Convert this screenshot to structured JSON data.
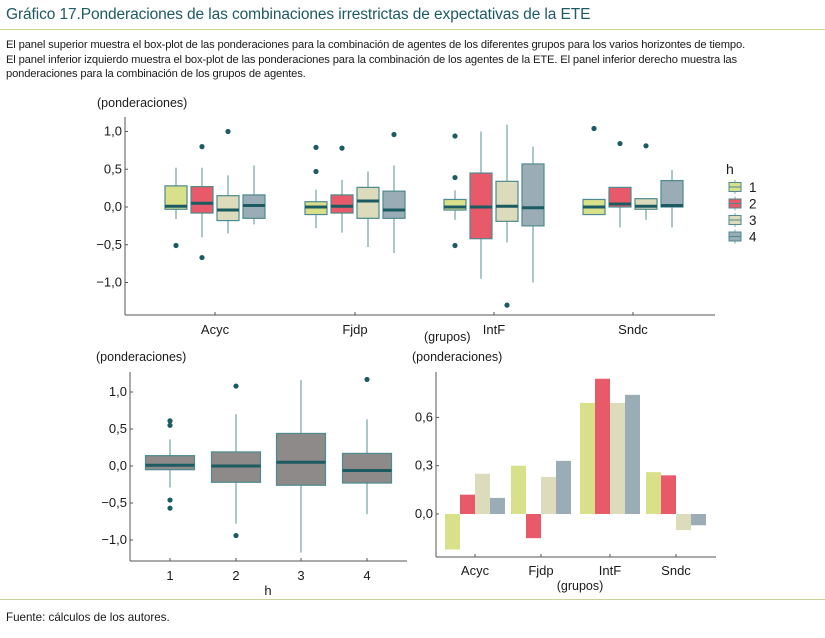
{
  "title": "Gráfico 17.Ponderaciones de las combinaciones irrestrictas de expectativas de la ETE",
  "description": [
    "El panel superior muestra el box-plot de las ponderaciones para la combinación de agentes de los diferentes grupos para los varios horizontes de tiempo.",
    "El panel inferior izquierdo muestra el box-plot de las ponderaciones para la combinación de los agentes de la ETE. El panel inferior derecho muestra las",
    "ponderaciones para la combinación de los grupos de agentes."
  ],
  "source": "Fuente: cálculos de los autores.",
  "colors": {
    "h1": "#d8e08a",
    "h2": "#e85a6a",
    "h3": "#dcdbbb",
    "h4": "#9aacb5",
    "gray_box": "#8e8a89",
    "median": "#1d5b63",
    "whisker": "#7fa9b0",
    "outlier": "#1d5b63",
    "box_edge": "#4e8a8f"
  },
  "chart_data": [
    {
      "type": "boxplot",
      "panel": "top",
      "title": "",
      "ylabel": "(ponderaciones)",
      "xlabel": "(grupos)",
      "ylim": [
        -1.43,
        1.2
      ],
      "yticks": [
        1.0,
        0.5,
        0.0,
        -0.5,
        -1.0
      ],
      "ytick_labels": [
        "1,0",
        "0,5",
        "0,0",
        "−0,5",
        "−1,0"
      ],
      "categories": [
        "Acyc",
        "Fjdp",
        "IntF",
        "Sndc"
      ],
      "legend": {
        "title": "h",
        "entries": [
          "1",
          "2",
          "3",
          "4"
        ],
        "placement": "right"
      },
      "series": [
        {
          "name": "1",
          "boxes": [
            {
              "q1": -0.03,
              "median": 0.01,
              "q3": 0.28,
              "wlo": -0.16,
              "whi": 0.52,
              "outliers": [
                -0.51
              ]
            },
            {
              "q1": -0.1,
              "median": 0.0,
              "q3": 0.07,
              "wlo": -0.28,
              "whi": 0.23,
              "outliers": [
                0.79,
                0.47
              ]
            },
            {
              "q1": -0.04,
              "median": 0.0,
              "q3": 0.1,
              "wlo": -0.17,
              "whi": 0.22,
              "outliers": [
                0.94,
                0.39,
                -0.51
              ]
            },
            {
              "q1": -0.1,
              "median": 0.0,
              "q3": 0.1,
              "wlo": -0.1,
              "whi": 0.1,
              "outliers": [
                1.04
              ]
            }
          ]
        },
        {
          "name": "2",
          "boxes": [
            {
              "q1": -0.08,
              "median": 0.05,
              "q3": 0.27,
              "wlo": -0.4,
              "whi": 0.52,
              "outliers": [
                0.8,
                -0.67
              ]
            },
            {
              "q1": -0.08,
              "median": 0.01,
              "q3": 0.16,
              "wlo": -0.34,
              "whi": 0.36,
              "outliers": [
                0.78
              ]
            },
            {
              "q1": -0.42,
              "median": 0.0,
              "q3": 0.45,
              "wlo": -0.95,
              "whi": 1.0,
              "outliers": []
            },
            {
              "q1": 0.0,
              "median": 0.04,
              "q3": 0.26,
              "wlo": -0.27,
              "whi": 0.26,
              "outliers": [
                0.84
              ]
            }
          ]
        },
        {
          "name": "3",
          "boxes": [
            {
              "q1": -0.18,
              "median": -0.04,
              "q3": 0.15,
              "wlo": -0.35,
              "whi": 0.42,
              "outliers": [
                1.0
              ]
            },
            {
              "q1": -0.15,
              "median": 0.08,
              "q3": 0.26,
              "wlo": -0.53,
              "whi": 0.47,
              "outliers": []
            },
            {
              "q1": -0.19,
              "median": 0.01,
              "q3": 0.34,
              "wlo": -0.47,
              "whi": 1.09,
              "outliers": [
                -1.3
              ]
            },
            {
              "q1": -0.03,
              "median": 0.01,
              "q3": 0.11,
              "wlo": -0.17,
              "whi": 0.11,
              "outliers": [
                0.81
              ]
            }
          ]
        },
        {
          "name": "4",
          "boxes": [
            {
              "q1": -0.15,
              "median": 0.02,
              "q3": 0.16,
              "wlo": -0.23,
              "whi": 0.55,
              "outliers": []
            },
            {
              "q1": -0.15,
              "median": -0.04,
              "q3": 0.21,
              "wlo": -0.61,
              "whi": 0.55,
              "outliers": [
                0.96
              ]
            },
            {
              "q1": -0.25,
              "median": -0.01,
              "q3": 0.57,
              "wlo": -1.0,
              "whi": 0.8,
              "outliers": []
            },
            {
              "q1": 0.0,
              "median": 0.02,
              "q3": 0.35,
              "wlo": -0.27,
              "whi": 0.49,
              "outliers": []
            }
          ]
        }
      ]
    },
    {
      "type": "boxplot",
      "panel": "bottom-left",
      "title": "",
      "ylabel": "(ponderaciones)",
      "xlabel": "h",
      "ylim": [
        -1.28,
        1.28
      ],
      "yticks": [
        1.0,
        0.5,
        0.0,
        -0.5,
        -1.0
      ],
      "ytick_labels": [
        "1,0",
        "0,5",
        "0,0",
        "−0,5",
        "−1,0"
      ],
      "categories": [
        "1",
        "2",
        "3",
        "4"
      ],
      "boxes": [
        {
          "q1": -0.05,
          "median": 0.01,
          "q3": 0.14,
          "wlo": -0.29,
          "whi": 0.36,
          "outliers": [
            0.61,
            0.55,
            -0.46,
            -0.57
          ]
        },
        {
          "q1": -0.22,
          "median": 0.0,
          "q3": 0.19,
          "wlo": -0.78,
          "whi": 0.7,
          "outliers": [
            1.08,
            -0.94
          ]
        },
        {
          "q1": -0.26,
          "median": 0.05,
          "q3": 0.44,
          "wlo": -1.17,
          "whi": 1.16,
          "outliers": []
        },
        {
          "q1": -0.23,
          "median": -0.06,
          "q3": 0.17,
          "wlo": -0.65,
          "whi": 0.63,
          "outliers": [
            1.17
          ]
        }
      ]
    },
    {
      "type": "bar",
      "panel": "bottom-right",
      "title": "",
      "ylabel": "(ponderaciones)",
      "xlabel": "(grupos)",
      "ylim": [
        -0.27,
        0.9
      ],
      "yticks": [
        0.6,
        0.3,
        0.0
      ],
      "ytick_labels": [
        "0,6",
        "0,3",
        "0,0"
      ],
      "categories": [
        "Acyc",
        "Fjdp",
        "IntF",
        "Sndc"
      ],
      "series": [
        {
          "name": "1",
          "values": [
            -0.22,
            0.3,
            0.69,
            0.26
          ]
        },
        {
          "name": "2",
          "values": [
            0.12,
            -0.15,
            0.84,
            0.24
          ]
        },
        {
          "name": "3",
          "values": [
            0.25,
            0.23,
            0.69,
            -0.1
          ]
        },
        {
          "name": "4",
          "values": [
            0.1,
            0.33,
            0.74,
            -0.07
          ]
        }
      ]
    }
  ]
}
